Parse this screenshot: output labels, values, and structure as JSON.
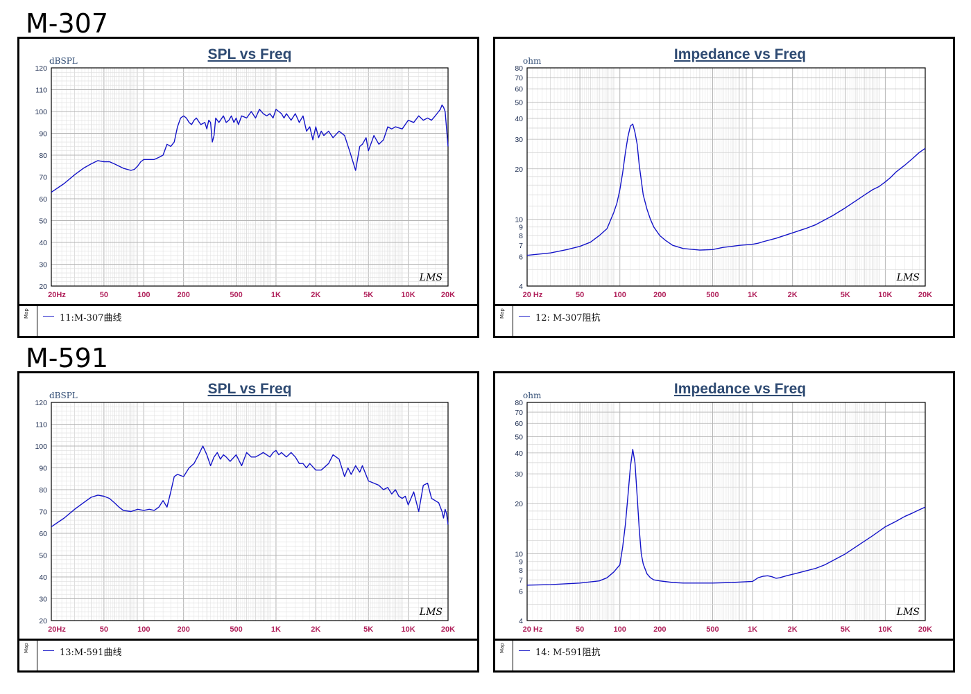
{
  "colors": {
    "curve": "#1414c8",
    "title": "#2e4a72",
    "tick_x": "#b0205a",
    "grid_major": "#b4b4b4",
    "grid_minor": "#d6d6d6"
  },
  "models": [
    {
      "name": "M-307"
    },
    {
      "name": "M-591"
    }
  ],
  "chart_data": [
    {
      "id": "spl-m307",
      "type": "line",
      "title": "SPL vs Freq",
      "ylabel": "dBSPL",
      "xscale": "log",
      "xlim": [
        20,
        20000
      ],
      "ylim": [
        20,
        120
      ],
      "grid": true,
      "xticks": [
        "20Hz",
        "50",
        "100",
        "200",
        "500",
        "1K",
        "2K",
        "5K",
        "10K",
        "20K"
      ],
      "yticks": [
        "120",
        "110",
        "100",
        "90",
        "80",
        "70",
        "60",
        "50",
        "40",
        "30",
        "20"
      ],
      "watermark": "LMS",
      "legend": "11:M-307曲线",
      "series": [
        {
          "name": "11:M-307曲线",
          "x": [
            20,
            25,
            30,
            35,
            40,
            45,
            50,
            55,
            60,
            70,
            80,
            85,
            90,
            95,
            100,
            120,
            130,
            140,
            150,
            160,
            170,
            180,
            190,
            200,
            210,
            220,
            230,
            240,
            250,
            270,
            290,
            300,
            310,
            320,
            330,
            340,
            350,
            370,
            400,
            420,
            440,
            460,
            480,
            500,
            520,
            550,
            600,
            650,
            700,
            750,
            800,
            850,
            900,
            950,
            1000,
            1050,
            1100,
            1150,
            1200,
            1300,
            1400,
            1500,
            1600,
            1700,
            1800,
            1900,
            2000,
            2100,
            2200,
            2300,
            2500,
            2700,
            3000,
            3300,
            3600,
            4000,
            4300,
            4500,
            4800,
            5000,
            5500,
            6000,
            6500,
            7000,
            7500,
            8000,
            9000,
            10000,
            11000,
            12000,
            13000,
            14000,
            15000,
            16000,
            17000,
            17500,
            18000,
            18500,
            19000,
            19500,
            20000
          ],
          "y": [
            63,
            67,
            71,
            74,
            76,
            77.5,
            77,
            77,
            76,
            74,
            73,
            73.5,
            75,
            77,
            78,
            78,
            79,
            80,
            85,
            84,
            86,
            93,
            97,
            98,
            97,
            95,
            94,
            96,
            97,
            94,
            95,
            92,
            96,
            95,
            86,
            89,
            97,
            95,
            98,
            95,
            96,
            98,
            95,
            97,
            94,
            98,
            97,
            100,
            97,
            101,
            99,
            98,
            99,
            97,
            101,
            100,
            99,
            97,
            99,
            96,
            99,
            95,
            98,
            91,
            93,
            87,
            93,
            88,
            91,
            89,
            91,
            88,
            91,
            89,
            82,
            73,
            84,
            85,
            88,
            82,
            89,
            85,
            87,
            93,
            92,
            93,
            92,
            96,
            95,
            98,
            96,
            97,
            96,
            98,
            100,
            101,
            103,
            102,
            100,
            92,
            84
          ]
        }
      ]
    },
    {
      "id": "imp-m307",
      "type": "line",
      "title": "Impedance vs Freq",
      "ylabel": "ohm",
      "xscale": "log",
      "yscale": "log",
      "xlim": [
        20,
        20000
      ],
      "ylim": [
        4,
        80
      ],
      "grid": true,
      "xticks": [
        "20 Hz",
        "50",
        "100",
        "200",
        "500",
        "1K",
        "2K",
        "5K",
        "10K",
        "20K"
      ],
      "yticks": [
        "80",
        "70",
        "60",
        "50",
        "40",
        "30",
        "20",
        "10",
        "9",
        "8",
        "7",
        "6",
        "4"
      ],
      "watermark": "LMS",
      "legend": "12: M-307阻抗",
      "series": [
        {
          "name": "12: M-307阻抗",
          "x": [
            20,
            30,
            40,
            50,
            60,
            70,
            80,
            90,
            95,
            100,
            105,
            110,
            115,
            120,
            125,
            130,
            135,
            140,
            150,
            160,
            170,
            180,
            200,
            220,
            250,
            300,
            400,
            500,
            600,
            700,
            800,
            900,
            1000,
            1100,
            1200,
            1500,
            2000,
            2500,
            3000,
            4000,
            5000,
            6000,
            7000,
            8000,
            9000,
            10000,
            11000,
            12000,
            14000,
            16000,
            18000,
            20000
          ],
          "y": [
            6.1,
            6.3,
            6.6,
            6.9,
            7.3,
            8.0,
            8.8,
            11,
            12.5,
            15,
            19,
            25,
            31,
            36,
            37,
            33,
            28,
            21,
            14,
            11.5,
            10,
            9,
            8,
            7.5,
            7.0,
            6.7,
            6.55,
            6.6,
            6.8,
            6.9,
            7.0,
            7.05,
            7.1,
            7.2,
            7.35,
            7.7,
            8.3,
            8.8,
            9.3,
            10.5,
            11.7,
            12.9,
            14.0,
            15.0,
            15.7,
            16.7,
            17.8,
            19.1,
            21.0,
            23.0,
            25.0,
            26.5
          ]
        }
      ]
    },
    {
      "id": "spl-m591",
      "type": "line",
      "title": "SPL vs Freq",
      "ylabel": "dBSPL",
      "xscale": "log",
      "xlim": [
        20,
        20000
      ],
      "ylim": [
        20,
        120
      ],
      "grid": true,
      "xticks": [
        "20Hz",
        "50",
        "100",
        "200",
        "500",
        "1K",
        "2K",
        "5K",
        "10K",
        "20K"
      ],
      "yticks": [
        "120",
        "110",
        "100",
        "90",
        "80",
        "70",
        "60",
        "50",
        "40",
        "30",
        "20"
      ],
      "watermark": "LMS",
      "legend": "13:M-591曲线",
      "series": [
        {
          "name": "13:M-591曲线",
          "x": [
            20,
            25,
            30,
            35,
            40,
            45,
            50,
            55,
            60,
            65,
            70,
            80,
            85,
            90,
            100,
            110,
            120,
            130,
            140,
            150,
            160,
            170,
            180,
            200,
            220,
            240,
            260,
            280,
            300,
            320,
            330,
            340,
            360,
            380,
            400,
            420,
            450,
            500,
            550,
            600,
            650,
            700,
            750,
            800,
            850,
            900,
            950,
            1000,
            1050,
            1100,
            1200,
            1300,
            1400,
            1500,
            1600,
            1700,
            1800,
            2000,
            2200,
            2500,
            2700,
            3000,
            3300,
            3500,
            3700,
            4000,
            4300,
            4500,
            5000,
            5500,
            6000,
            6500,
            7000,
            7500,
            8000,
            8500,
            9000,
            9500,
            10000,
            11000,
            12000,
            13000,
            14000,
            15000,
            16000,
            17000,
            18000,
            18500,
            19000,
            19500,
            20000
          ],
          "y": [
            63,
            67,
            71,
            74,
            76.5,
            77.5,
            77,
            76,
            74,
            72,
            70.5,
            70,
            70.5,
            71,
            70.5,
            71,
            70.5,
            72,
            75,
            72,
            79,
            86,
            87,
            86,
            90,
            92,
            96,
            100,
            96,
            91,
            93,
            95,
            97,
            94,
            96,
            95,
            93,
            96,
            91,
            97,
            95,
            95,
            96,
            97,
            96,
            95,
            97,
            98,
            96,
            97,
            95,
            97,
            95,
            92,
            92,
            90,
            92,
            89,
            89,
            92,
            96,
            94,
            86,
            90,
            87,
            91,
            88,
            91,
            84,
            83,
            82,
            80,
            81,
            78,
            80,
            77,
            76,
            77,
            73,
            79,
            70,
            82,
            83,
            76,
            75,
            74,
            70,
            67,
            71,
            69,
            64
          ]
        }
      ]
    },
    {
      "id": "imp-m591",
      "type": "line",
      "title": "Impedance vs Freq",
      "ylabel": "ohm",
      "xscale": "log",
      "yscale": "log",
      "xlim": [
        20,
        20000
      ],
      "ylim": [
        4,
        80
      ],
      "grid": true,
      "xticks": [
        "20 Hz",
        "50",
        "100",
        "200",
        "500",
        "1K",
        "2K",
        "5K",
        "10K",
        "20K"
      ],
      "yticks": [
        "80",
        "70",
        "60",
        "50",
        "40",
        "30",
        "20",
        "10",
        "9",
        "8",
        "7",
        "6",
        "4"
      ],
      "watermark": "LMS",
      "legend": "14: M-591阻抗",
      "series": [
        {
          "name": "14: M-591阻抗",
          "x": [
            20,
            30,
            50,
            70,
            80,
            90,
            100,
            105,
            110,
            115,
            120,
            125,
            130,
            135,
            140,
            145,
            150,
            160,
            170,
            180,
            200,
            250,
            300,
            400,
            500,
            700,
            1000,
            1100,
            1200,
            1300,
            1400,
            1500,
            1600,
            1700,
            1800,
            2000,
            2500,
            3000,
            3500,
            4000,
            5000,
            6000,
            8000,
            10000,
            12000,
            14000,
            16000,
            18000,
            20000
          ],
          "y": [
            6.5,
            6.55,
            6.7,
            6.9,
            7.2,
            7.8,
            8.6,
            11,
            15,
            22,
            33,
            42,
            35,
            22,
            14,
            10,
            8.7,
            7.6,
            7.2,
            7.0,
            6.9,
            6.75,
            6.7,
            6.7,
            6.7,
            6.75,
            6.85,
            7.2,
            7.35,
            7.4,
            7.3,
            7.15,
            7.2,
            7.3,
            7.4,
            7.55,
            7.9,
            8.2,
            8.6,
            9.1,
            10.0,
            11.0,
            12.8,
            14.5,
            15.6,
            16.7,
            17.5,
            18.3,
            19.0
          ]
        }
      ]
    }
  ]
}
